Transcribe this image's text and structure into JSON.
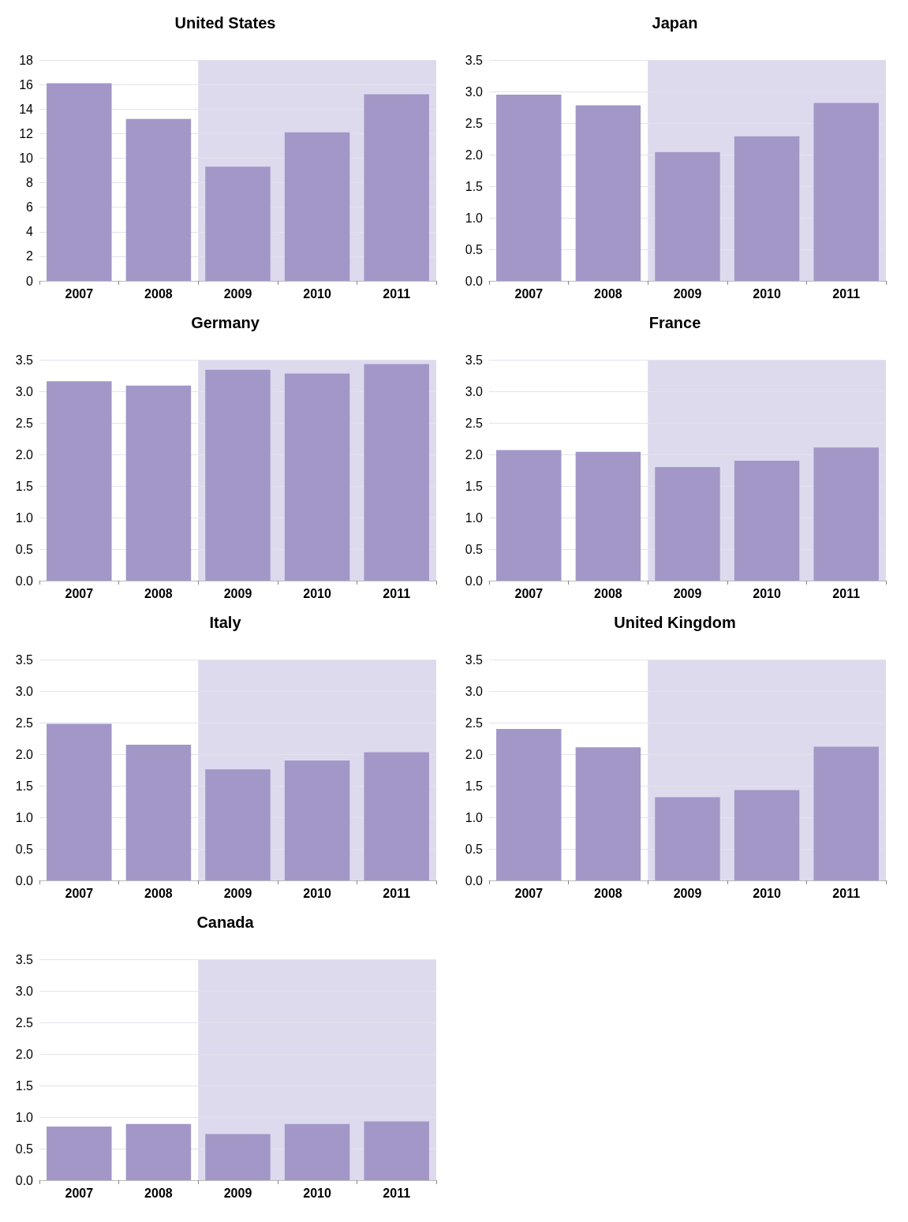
{
  "chart_data": [
    {
      "type": "bar",
      "title": "United States",
      "categories": [
        "2007",
        "2008",
        "2009",
        "2010",
        "2011"
      ],
      "series": [
        {
          "color": "#a397c8",
          "values": [
            16.1,
            13.2,
            9.3,
            12.1,
            15.2
          ]
        }
      ],
      "ylim": [
        0,
        18
      ],
      "yticks": [
        0,
        2,
        4,
        6,
        8,
        10,
        12,
        14,
        16,
        18
      ],
      "grid": "y",
      "bands": [
        {
          "axis": "x",
          "from": "2009",
          "to": "2011",
          "color": "#dedaee"
        }
      ]
    },
    {
      "type": "bar",
      "title": "Japan",
      "categories": [
        "2007",
        "2008",
        "2009",
        "2010",
        "2011"
      ],
      "series": [
        {
          "color": "#a397c8",
          "values": [
            2.95,
            2.78,
            2.04,
            2.29,
            2.82
          ]
        }
      ],
      "ylim": [
        0,
        3.5
      ],
      "yticks": [
        {
          "value": 0,
          "label": "0.0"
        },
        0.5,
        {
          "value": 1,
          "label": "1.0"
        },
        1.5,
        {
          "value": 2,
          "label": "2.0"
        },
        2.5,
        {
          "value": 3,
          "label": "3.0"
        },
        3.5
      ],
      "grid": "y",
      "bands": [
        {
          "axis": "x",
          "from": "2009",
          "to": "2011",
          "color": "#dedaee"
        }
      ]
    },
    {
      "type": "bar",
      "title": "Germany",
      "categories": [
        "2007",
        "2008",
        "2009",
        "2010",
        "2011"
      ],
      "series": [
        {
          "color": "#a397c8",
          "values": [
            3.16,
            3.09,
            3.34,
            3.28,
            3.43
          ]
        }
      ],
      "ylim": [
        0,
        3.5
      ],
      "yticks": [
        {
          "value": 0,
          "label": "0.0"
        },
        0.5,
        {
          "value": 1,
          "label": "1.0"
        },
        1.5,
        {
          "value": 2,
          "label": "2.0"
        },
        2.5,
        {
          "value": 3,
          "label": "3.0"
        },
        3.5
      ],
      "grid": "y",
      "bands": [
        {
          "axis": "x",
          "from": "2009",
          "to": "2011",
          "color": "#dedaee"
        }
      ]
    },
    {
      "type": "bar",
      "title": "France",
      "categories": [
        "2007",
        "2008",
        "2009",
        "2010",
        "2011"
      ],
      "series": [
        {
          "color": "#a397c8",
          "values": [
            2.07,
            2.04,
            1.8,
            1.9,
            2.11
          ]
        }
      ],
      "ylim": [
        0,
        3.5
      ],
      "yticks": [
        {
          "value": 0,
          "label": "0.0"
        },
        0.5,
        {
          "value": 1,
          "label": "1.0"
        },
        1.5,
        {
          "value": 2,
          "label": "2.0"
        },
        2.5,
        {
          "value": 3,
          "label": "3.0"
        },
        3.5
      ],
      "grid": "y",
      "bands": [
        {
          "axis": "x",
          "from": "2009",
          "to": "2011",
          "color": "#dedaee"
        }
      ]
    },
    {
      "type": "bar",
      "title": "Italy",
      "categories": [
        "2007",
        "2008",
        "2009",
        "2010",
        "2011"
      ],
      "series": [
        {
          "color": "#a397c8",
          "values": [
            2.48,
            2.15,
            1.76,
            1.9,
            2.03
          ]
        }
      ],
      "ylim": [
        0,
        3.5
      ],
      "yticks": [
        {
          "value": 0,
          "label": "0.0"
        },
        0.5,
        {
          "value": 1,
          "label": "1.0"
        },
        1.5,
        {
          "value": 2,
          "label": "2.0"
        },
        2.5,
        {
          "value": 3,
          "label": "3.0"
        },
        3.5
      ],
      "grid": "y",
      "bands": [
        {
          "axis": "x",
          "from": "2009",
          "to": "2011",
          "color": "#dedaee"
        }
      ]
    },
    {
      "type": "bar",
      "title": "United Kingdom",
      "categories": [
        "2007",
        "2008",
        "2009",
        "2010",
        "2011"
      ],
      "series": [
        {
          "color": "#a397c8",
          "values": [
            2.4,
            2.11,
            1.32,
            1.43,
            2.12
          ]
        }
      ],
      "ylim": [
        0,
        3.5
      ],
      "yticks": [
        {
          "value": 0,
          "label": "0.0"
        },
        0.5,
        {
          "value": 1,
          "label": "1.0"
        },
        1.5,
        {
          "value": 2,
          "label": "2.0"
        },
        2.5,
        {
          "value": 3,
          "label": "3.0"
        },
        3.5
      ],
      "grid": "y",
      "bands": [
        {
          "axis": "x",
          "from": "2009",
          "to": "2011",
          "color": "#dedaee"
        }
      ]
    },
    {
      "type": "bar",
      "title": "Canada",
      "categories": [
        "2007",
        "2008",
        "2009",
        "2010",
        "2011"
      ],
      "series": [
        {
          "color": "#a397c8",
          "values": [
            0.85,
            0.89,
            0.73,
            0.89,
            0.93
          ]
        }
      ],
      "ylim": [
        0,
        3.5
      ],
      "yticks": [
        {
          "value": 0,
          "label": "0.0"
        },
        0.5,
        {
          "value": 1,
          "label": "1.0"
        },
        1.5,
        {
          "value": 2,
          "label": "2.0"
        },
        2.5,
        {
          "value": 3,
          "label": "3.0"
        },
        3.5
      ],
      "grid": "y",
      "bands": [
        {
          "axis": "x",
          "from": "2009",
          "to": "2011",
          "color": "#dedaee"
        }
      ]
    }
  ]
}
